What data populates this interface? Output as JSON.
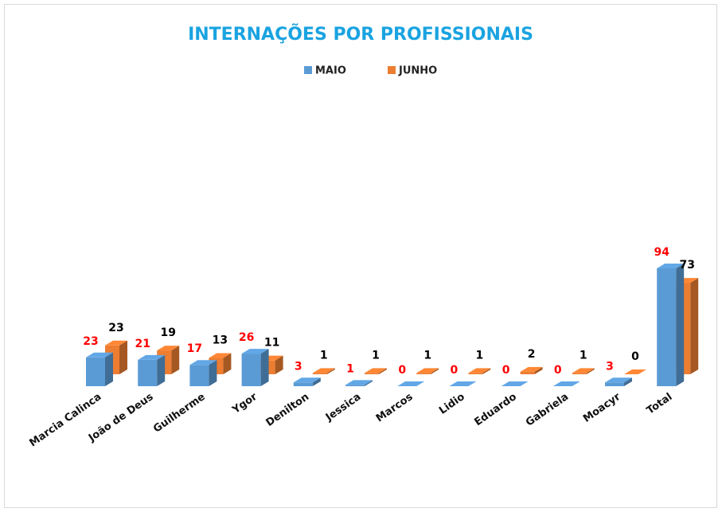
{
  "chart_data": {
    "type": "bar3d",
    "title": "INTERNAÇÕES POR PROFISSIONAIS",
    "categories": [
      "Marcia Calinca",
      "João de Deus",
      "Guilherme",
      "Ygor",
      "Denilton",
      "Jessica",
      "Marcos",
      "Lidio",
      "Eduardo",
      "Gabriela",
      "Moacyr",
      "Total"
    ],
    "series": [
      {
        "name": "MAIO",
        "color": "#5b9bd5",
        "label_color": "#ff0000",
        "values": [
          23,
          21,
          17,
          26,
          3,
          1,
          0,
          0,
          0,
          0,
          3,
          94
        ]
      },
      {
        "name": "JUNHO",
        "color": "#ed7d31",
        "label_color": "#000000",
        "values": [
          23,
          19,
          13,
          11,
          1,
          1,
          1,
          1,
          2,
          1,
          0,
          73
        ]
      }
    ]
  }
}
